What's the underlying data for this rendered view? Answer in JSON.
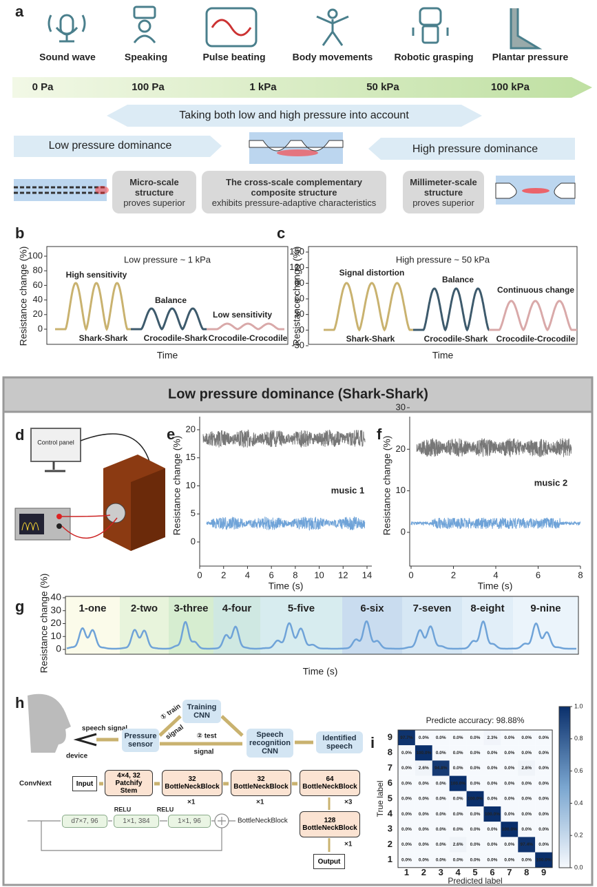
{
  "panel_a": {
    "label": "a",
    "icons": [
      "Sound wave",
      "Speaking",
      "Pulse beating",
      "Body movements",
      "Robotic grasping",
      "Plantar pressure"
    ],
    "pressures": [
      "0 Pa",
      "100 Pa",
      "1 kPa",
      "50 kPa",
      "100 kPa"
    ],
    "both": "Taking both low and high pressure into account",
    "low": "Low pressure dominance",
    "high": "High pressure dominance",
    "boxes": [
      {
        "title": "Micro-scale structure",
        "sub": "proves superior"
      },
      {
        "title": "The cross-scale complementary composite structure",
        "sub": "exhibits pressure-adaptive characteristics"
      },
      {
        "title": "Millimeter-scale structure",
        "sub": "proves superior"
      }
    ]
  },
  "panel_b": {
    "label": "b",
    "ylabel": "Resistance change (%)",
    "xlabel": "Time",
    "note": "Low pressure ~ 1 kPa",
    "yticks": [
      100,
      80,
      60,
      40,
      20,
      0
    ],
    "annotations": [
      "High sensitivity",
      "Balance",
      "Low sensitivity"
    ],
    "names": [
      "Shark-Shark",
      "Crocodile-Shark",
      "Crocodile-Crocodile"
    ]
  },
  "panel_c": {
    "label": "c",
    "ylabel": "Resistance change (%)",
    "xlabel": "Time",
    "note": "High pressure ~ 50 kPa",
    "yticks": [
      150,
      120,
      90,
      60,
      30,
      0,
      -30
    ],
    "annotations": [
      "Signal distortion",
      "Balance",
      "Continuous change"
    ],
    "names": [
      "Shark-Shark",
      "Crocodile-Shark",
      "Crocodile-Crocodile"
    ]
  },
  "section_title": "Low pressure dominance (Shark-Shark)",
  "panel_d": {
    "label": "d",
    "screen": "Control panel"
  },
  "panel_e": {
    "label": "e",
    "ylabel": "Resistance change (%)",
    "xlabel": "Time (s)",
    "note": "music 1",
    "yticks": [
      0,
      5,
      10,
      15,
      20
    ],
    "xticks": [
      0,
      2,
      4,
      6,
      8,
      10,
      12,
      14
    ]
  },
  "panel_f": {
    "label": "f",
    "ylabel": "Resistance change (%)",
    "xlabel": "Time (s)",
    "note": "music 2",
    "yticks": [
      0,
      10,
      20,
      30
    ],
    "xticks": [
      0,
      2,
      4,
      6,
      8
    ]
  },
  "panel_g": {
    "label": "g",
    "ylabel": "Resistance change (%)",
    "xlabel": "Time (s)",
    "yticks": [
      0,
      10,
      20,
      30,
      40
    ],
    "words": [
      "1-one",
      "2-two",
      "3-three",
      "4-four",
      "5-five",
      "6-six",
      "7-seven",
      "8-eight",
      "9-nine"
    ]
  },
  "panel_h": {
    "label": "h",
    "speech_signal": "speech signal",
    "device": "device",
    "sensor": "Pressure sensor",
    "training": "Training CNN",
    "train": "① train",
    "signal_1": "signal",
    "test": "② test",
    "signal_2": "signal",
    "recognition": "Speech recognition CNN",
    "identified": "Identified speech",
    "convnext": "ConvNext",
    "input": "Input",
    "stem": "4×4, 32 Patchify Stem",
    "block1": "32 BottleNeckBlock",
    "rep1": "×1",
    "block2": "32 BottleNeckBlock",
    "rep2": "×1",
    "block3": "64 BottleNeckBlock",
    "rep3": "×3",
    "block4": "128 BottleNeckBlock",
    "rep4": "×1",
    "output": "Output",
    "conv1": "d7×7, 96",
    "relu1": "RELU",
    "conv2": "1×1, 384",
    "relu2": "RELU",
    "conv3": "1×1, 96",
    "block_out": "BottleNeckBlock"
  },
  "panel_i": {
    "label": "i",
    "title": "Predicte accuracy: 98.88%",
    "ylabel": "True label",
    "xlabel": "Predicted label",
    "rows": [
      "9",
      "8",
      "7",
      "6",
      "5",
      "4",
      "3",
      "2",
      "1"
    ],
    "cols": [
      "1",
      "2",
      "3",
      "4",
      "5",
      "6",
      "7",
      "8",
      "9"
    ],
    "matrix": [
      [
        "97.7%",
        "0.0%",
        "0.0%",
        "0.0%",
        "0.0%",
        "2.3%",
        "0.0%",
        "0.0%",
        "0.0%"
      ],
      [
        "0.0%",
        "100.0%",
        "0.0%",
        "0.0%",
        "0.0%",
        "0.0%",
        "0.0%",
        "0.0%",
        "0.0%"
      ],
      [
        "0.0%",
        "2.6%",
        "94.8%",
        "0.0%",
        "0.0%",
        "0.0%",
        "0.0%",
        "2.6%",
        "0.0%"
      ],
      [
        "0.0%",
        "0.0%",
        "0.0%",
        "100.0%",
        "0.0%",
        "0.0%",
        "0.0%",
        "0.0%",
        "0.0%"
      ],
      [
        "0.0%",
        "0.0%",
        "0.0%",
        "0.0%",
        "100.0%",
        "0.0%",
        "0.0%",
        "0.0%",
        "0.0%"
      ],
      [
        "0.0%",
        "0.0%",
        "0.0%",
        "0.0%",
        "0.0%",
        "100.0%",
        "0.0%",
        "0.0%",
        "0.0%"
      ],
      [
        "0.0%",
        "0.0%",
        "0.0%",
        "0.0%",
        "0.0%",
        "0.0%",
        "100.0%",
        "0.0%",
        "0.0%"
      ],
      [
        "0.0%",
        "0.0%",
        "0.0%",
        "2.6%",
        "0.0%",
        "0.0%",
        "0.0%",
        "97.4%",
        "0.0%"
      ],
      [
        "0.0%",
        "0.0%",
        "0.0%",
        "0.0%",
        "0.0%",
        "0.0%",
        "0.0%",
        "0.0%",
        "100.0%"
      ]
    ],
    "colorbar_ticks": [
      "1.0",
      "0.8",
      "0.6",
      "0.4",
      "0.2",
      "0.0"
    ]
  }
}
